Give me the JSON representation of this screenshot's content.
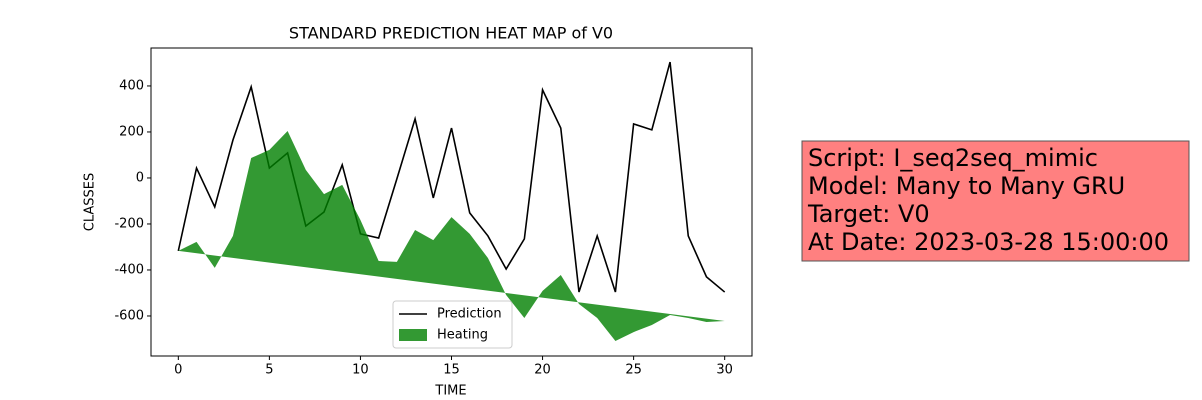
{
  "chart_data": {
    "type": "line-area",
    "title": "STANDARD PREDICTION HEAT MAP of V0",
    "x_label": "TIME",
    "y_label": "CLASSES",
    "x": [
      0,
      1,
      2,
      3,
      4,
      5,
      6,
      7,
      8,
      9,
      10,
      11,
      12,
      13,
      14,
      15,
      16,
      17,
      18,
      19,
      20,
      21,
      22,
      23,
      24,
      25,
      26,
      27,
      28,
      29,
      30
    ],
    "series": [
      {
        "name": "Prediction",
        "kind": "line",
        "color": "#000000",
        "values": [
          -317,
          43,
          -126,
          165,
          396,
          43,
          109,
          -209,
          -148,
          57,
          -243,
          -261,
          -4,
          257,
          -87,
          217,
          -152,
          -252,
          -396,
          -265,
          383,
          217,
          -496,
          -252,
          -496,
          235,
          209,
          504,
          -252,
          -430,
          -496
        ]
      },
      {
        "name": "Heating",
        "kind": "area",
        "color": "#008000",
        "values": [
          -317,
          -278,
          -391,
          -252,
          87,
          122,
          204,
          35,
          -70,
          -30,
          -183,
          -361,
          -365,
          -226,
          -270,
          -170,
          -243,
          -348,
          -509,
          -609,
          -491,
          -422,
          -548,
          -609,
          -709,
          -670,
          -639,
          -596,
          -609,
          -626,
          -622
        ],
        "base": {
          "x": [
            0,
            30
          ],
          "values": [
            -317,
            -622
          ]
        }
      }
    ],
    "xlim": [
      -1.5,
      31.5
    ],
    "xticks": [
      0,
      5,
      10,
      15,
      20,
      25,
      30
    ],
    "ylim": [
      -774,
      565
    ],
    "yticks": [
      -600,
      -400,
      -200,
      0,
      200,
      400
    ],
    "legend": "lower center",
    "annotation": {
      "lines": [
        "Script: I_seq2seq_mimic",
        "Model: Many to Many GRU",
        "Target: V0",
        "At Date: 2023-03-28 15:00:00"
      ],
      "background": "#ff8080"
    }
  }
}
